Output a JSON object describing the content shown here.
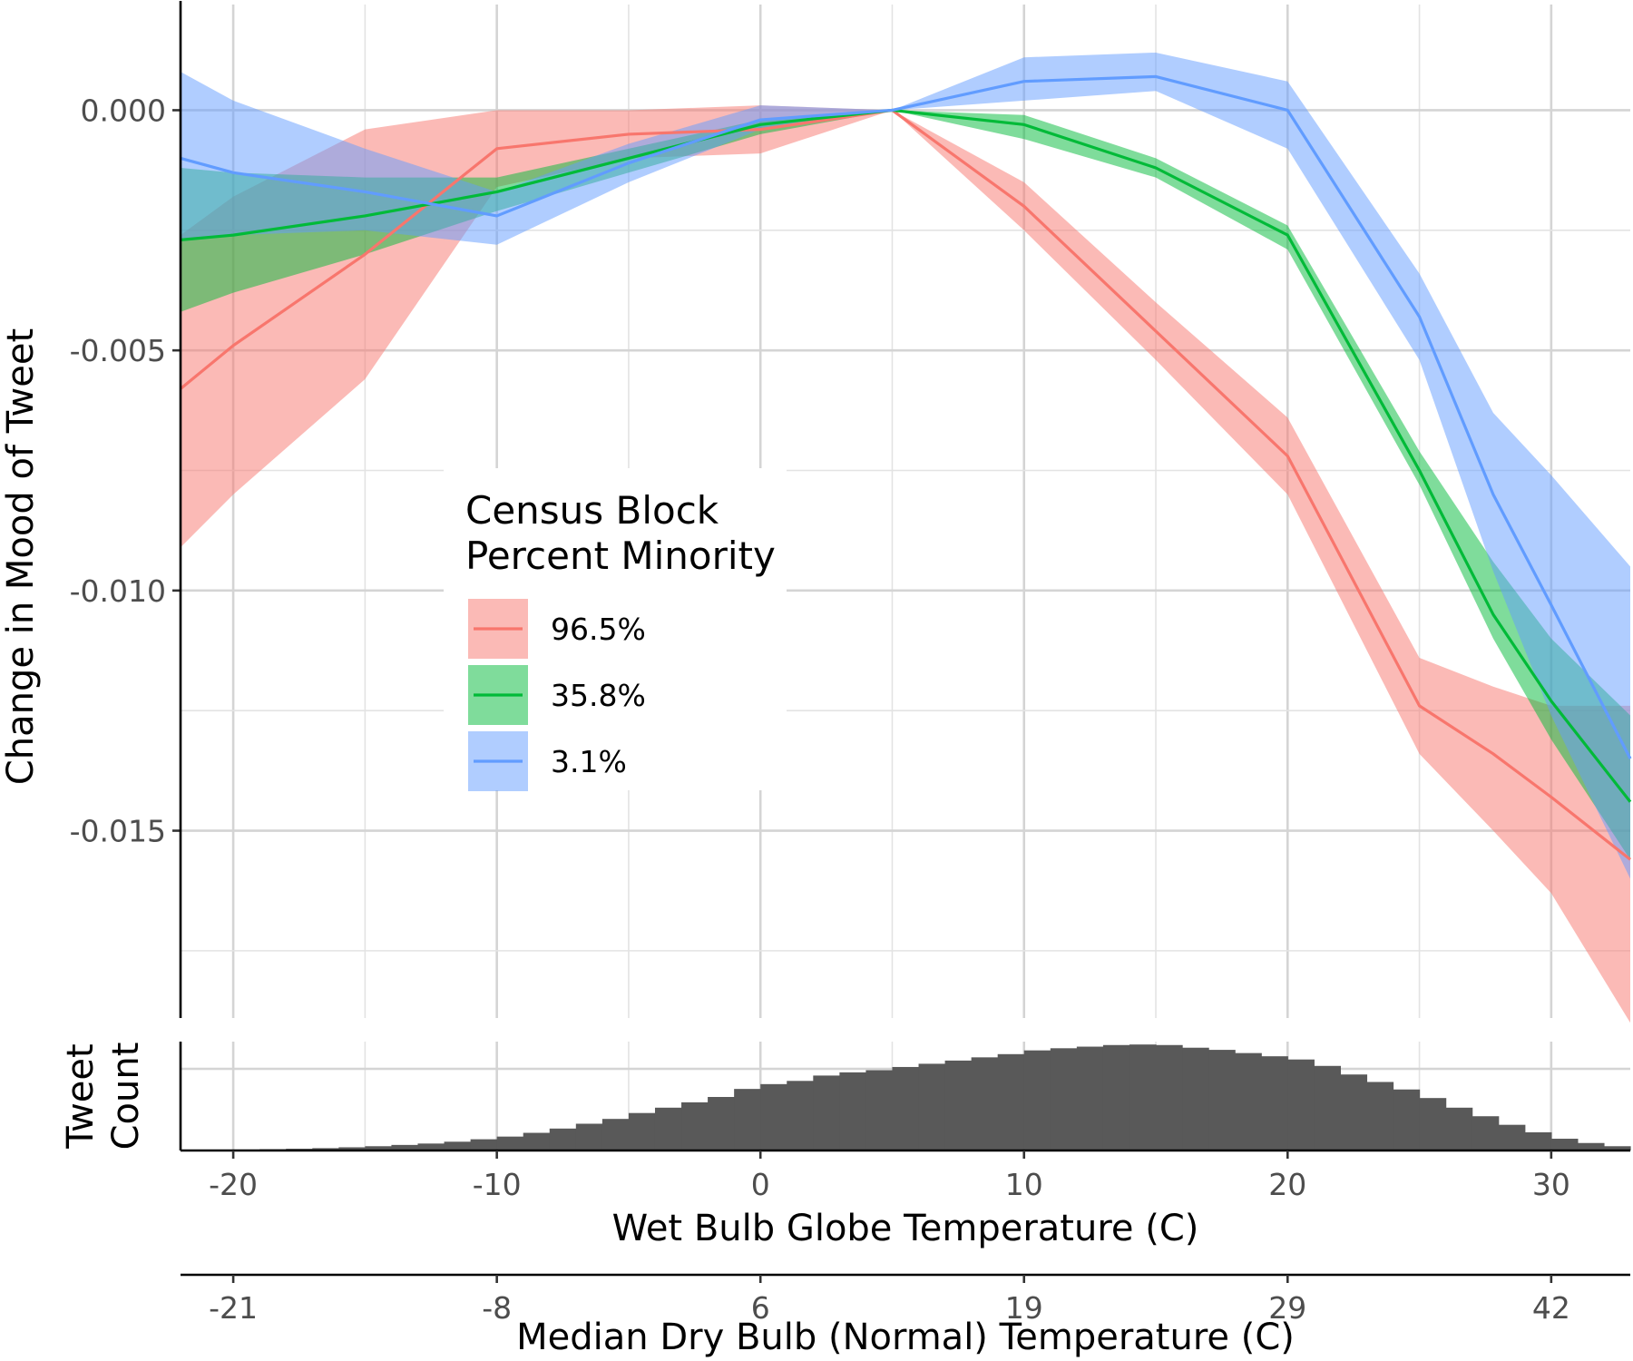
{
  "chart_data": [
    {
      "type": "line",
      "ylabel": "Change in Mood of Tweet",
      "xlim": [
        -22,
        33
      ],
      "ylim": [
        -0.0189,
        0.0022
      ],
      "x_ticks": [
        -20,
        -10,
        0,
        10,
        20,
        30
      ],
      "y_ticks": [
        0.0,
        -0.005,
        -0.01,
        -0.015
      ],
      "y_tick_labels": [
        "0.000",
        "-0.005",
        "-0.010",
        "-0.015"
      ],
      "grid": true,
      "legend": {
        "title_lines": [
          "Census Block",
          "Percent Minority"
        ],
        "placement": "center-left"
      },
      "x": [
        -22,
        -20,
        -15,
        -10,
        -5,
        0,
        5,
        10,
        15,
        20,
        25,
        27.8,
        30,
        33
      ],
      "series": [
        {
          "name": "96.5%",
          "color": "#f8766d",
          "fill": "#f8766d",
          "values": [
            -0.0058,
            -0.0049,
            -0.003,
            -0.0008,
            -0.0005,
            -0.0004,
            0.0,
            -0.002,
            -0.0046,
            -0.0072,
            -0.0124,
            -0.0134,
            -0.0143,
            -0.0156
          ],
          "lower": [
            -0.0091,
            -0.008,
            -0.0056,
            -0.0016,
            -0.001,
            -0.0009,
            0.0,
            -0.0025,
            -0.0052,
            -0.008,
            -0.0134,
            -0.015,
            -0.0163,
            -0.019
          ],
          "upper": [
            -0.0026,
            -0.0018,
            -0.0004,
            0.0,
            0.0,
            0.0001,
            0.0,
            -0.0015,
            -0.004,
            -0.0064,
            -0.0114,
            -0.012,
            -0.0124,
            -0.0124
          ]
        },
        {
          "name": "35.8%",
          "color": "#00ba38",
          "fill": "#00ba38",
          "values": [
            -0.0027,
            -0.0026,
            -0.0022,
            -0.0017,
            -0.001,
            -0.0003,
            0.0,
            -0.0003,
            -0.0012,
            -0.0026,
            -0.0075,
            -0.0105,
            -0.0123,
            -0.0144
          ],
          "lower": [
            -0.0042,
            -0.0038,
            -0.003,
            -0.0021,
            -0.0013,
            -0.0005,
            0.0,
            -0.0006,
            -0.0014,
            -0.0029,
            -0.0078,
            -0.011,
            -0.0131,
            -0.0156
          ],
          "upper": [
            -0.0012,
            -0.0013,
            -0.0014,
            -0.0014,
            -0.0008,
            -0.0002,
            0.0,
            -0.0001,
            -0.001,
            -0.0024,
            -0.0071,
            -0.0094,
            -0.011,
            -0.0126
          ]
        },
        {
          "name": "3.1%",
          "color": "#619cff",
          "fill": "#619cff",
          "values": [
            -0.001,
            -0.0013,
            -0.0017,
            -0.0022,
            -0.0011,
            -0.0002,
            0.0,
            0.0006,
            0.0007,
            0.0,
            -0.0043,
            -0.008,
            -0.0103,
            -0.0135
          ],
          "lower": [
            -0.0027,
            -0.0026,
            -0.0025,
            -0.0028,
            -0.0015,
            -0.0004,
            0.0,
            0.0002,
            0.0004,
            -0.0008,
            -0.0052,
            -0.0096,
            -0.0126,
            -0.016
          ],
          "upper": [
            0.0008,
            0.0002,
            -0.0008,
            -0.0017,
            -0.0007,
            0.0001,
            0.0,
            0.0011,
            0.0012,
            0.0006,
            -0.0034,
            -0.0063,
            -0.0076,
            -0.0095
          ]
        }
      ]
    },
    {
      "type": "bar",
      "ylabel_lines": [
        "Tweet",
        "Count"
      ],
      "xlabel": "Wet Bulb Globe Temperature (C)",
      "xlim": [
        -22,
        33
      ],
      "x_ticks": [
        -20,
        -10,
        0,
        10,
        20,
        30
      ],
      "bin_width": 1,
      "bin_starts": [
        -22,
        -21,
        -20,
        -19,
        -18,
        -17,
        -16,
        -15,
        -14,
        -13,
        -12,
        -11,
        -10,
        -9,
        -8,
        -7,
        -6,
        -5,
        -4,
        -3,
        -2,
        -1,
        0,
        1,
        2,
        3,
        4,
        5,
        6,
        7,
        8,
        9,
        10,
        11,
        12,
        13,
        14,
        15,
        16,
        17,
        18,
        19,
        20,
        21,
        22,
        23,
        24,
        25,
        26,
        27,
        28,
        29,
        30,
        31,
        32
      ],
      "values": [
        0.5,
        0.7,
        0.9,
        1.2,
        1.6,
        2.2,
        3.0,
        4.0,
        5.2,
        6.5,
        8.2,
        10.5,
        13,
        16.5,
        20.5,
        25,
        29.5,
        35,
        40,
        45,
        50,
        57.5,
        62,
        65,
        70,
        73,
        75,
        78,
        81,
        84,
        87,
        90,
        93.5,
        95.5,
        97,
        98.5,
        99,
        98.5,
        96,
        94,
        91,
        88,
        85,
        79,
        71,
        64,
        57,
        49,
        40,
        32,
        24,
        17,
        11,
        7,
        4
      ],
      "ylim": [
        0,
        100
      ]
    },
    {
      "type": "axis",
      "xlabel": "Median Dry Bulb (Normal) Temperature (C)",
      "tick_positions": [
        -20,
        -10,
        0,
        10,
        20,
        30
      ],
      "tick_labels": [
        "-21",
        "-8",
        "6",
        "19",
        "29",
        "42"
      ]
    }
  ]
}
